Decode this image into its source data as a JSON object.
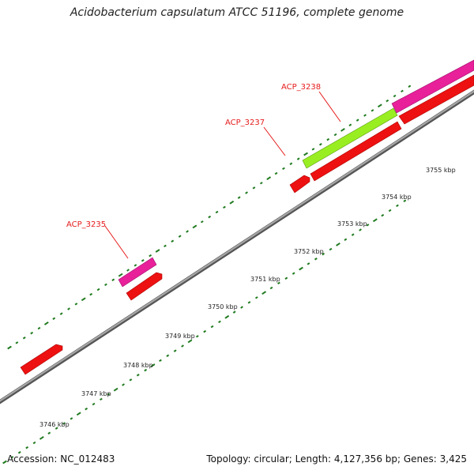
{
  "title": "Acidobacterium capsulatum ATCC 51196, complete genome",
  "footer": {
    "accession": "Accession: NC_012483",
    "summary": "Topology: circular; Length: 4,127,356 bp; Genes: 3,425"
  },
  "colors": {
    "backbone": "#8c8c8c",
    "tick": "#1f7a1f",
    "cds": "#ee1111",
    "rna": "#e8209a",
    "highlight": "#99ee22",
    "label": "#e61a1a",
    "scale_text": "#222222"
  },
  "scale": {
    "unit": "kbp",
    "labels": [
      "3746 kbp",
      "3747 kbp",
      "3748 kbp",
      "3749 kbp",
      "3750 kbp",
      "3751 kbp",
      "3752 kbp",
      "3753 kbp",
      "3754 kbp",
      "3755 kbp"
    ]
  },
  "genes": [
    {
      "label": "ACP_3235"
    },
    {
      "label": "ACP_3237"
    },
    {
      "label": "ACP_3238"
    }
  ]
}
